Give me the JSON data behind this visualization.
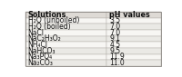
{
  "title_row": [
    "Solutions",
    "pH values"
  ],
  "rows": [
    [
      "H₂O (unboiled)",
      "3.5"
    ],
    [
      "H₂O (boiled)",
      "7.0"
    ],
    [
      "NaCl",
      "7.0"
    ],
    [
      "NaC₂H₃O₂",
      "9.1"
    ],
    [
      "NH₄Cl",
      "4.5"
    ],
    [
      "NaHCO₃",
      "9.5"
    ],
    [
      "Na₃PO₄",
      "11.9"
    ],
    [
      "Na₂CO₃",
      "11.0"
    ]
  ],
  "col_split": 0.6,
  "header_bg": "#dedad5",
  "row_bg_light": "#f7f6f3",
  "row_bg_dark": "#eae9e5",
  "border_color": "#b0aca6",
  "outer_border_color": "#888480",
  "header_fontsize": 5.8,
  "row_fontsize": 5.5,
  "text_color": "#111111",
  "fig_bg": "#ffffff"
}
